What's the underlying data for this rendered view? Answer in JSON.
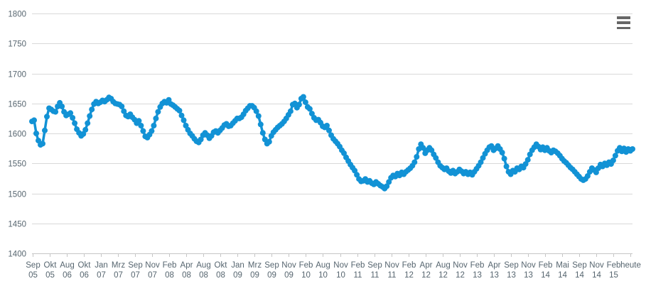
{
  "chart": {
    "series_color": "#1292d5",
    "grid_color": "#d8d8d8",
    "axis_line_color": "#c6c6c6",
    "label_color": "#56656f",
    "export_icon_color": "#666666",
    "background_color": "#ffffff"
  },
  "export_menu": {
    "icon": "hamburger-menu-icon"
  },
  "chart_data": {
    "type": "line",
    "title": "",
    "legend": "none",
    "grid": "horizontal",
    "marker_style": "filled-circle",
    "y_axis": {
      "min": 1400,
      "max": 1800,
      "tick_interval": 50,
      "tick_labels": [
        "1800",
        "1750",
        "1700",
        "1650",
        "1600",
        "1550",
        "1500",
        "1450",
        "1400"
      ]
    },
    "x_axis": {
      "tick_labels": [
        [
          "Sep",
          "05"
        ],
        [
          "Okt",
          "05"
        ],
        [
          "Aug",
          "06"
        ],
        [
          "Okt",
          "06"
        ],
        [
          "Jan",
          "07"
        ],
        [
          "Mrz",
          "07"
        ],
        [
          "Sep",
          "07"
        ],
        [
          "Nov",
          "07"
        ],
        [
          "Feb",
          "08"
        ],
        [
          "Apr",
          "08"
        ],
        [
          "Aug",
          "08"
        ],
        [
          "Okt",
          "08"
        ],
        [
          "Jan",
          "09"
        ],
        [
          "Mrz",
          "09"
        ],
        [
          "Sep",
          "09"
        ],
        [
          "Nov",
          "09"
        ],
        [
          "Feb",
          "10"
        ],
        [
          "Aug",
          "10"
        ],
        [
          "Nov",
          "10"
        ],
        [
          "Feb",
          "11"
        ],
        [
          "Sep",
          "11"
        ],
        [
          "Nov",
          "11"
        ],
        [
          "Feb",
          "12"
        ],
        [
          "Apr",
          "12"
        ],
        [
          "Aug",
          "12"
        ],
        [
          "Nov",
          "12"
        ],
        [
          "Feb",
          "13"
        ],
        [
          "Apr",
          "13"
        ],
        [
          "Sep",
          "13"
        ],
        [
          "Nov",
          "13"
        ],
        [
          "Feb",
          "14"
        ],
        [
          "Mai",
          "14"
        ],
        [
          "Sep",
          "14"
        ],
        [
          "Nov",
          "14"
        ],
        [
          "Feb",
          "15"
        ],
        [
          "heute",
          ""
        ]
      ]
    },
    "series": [
      {
        "values": [
          1620,
          1622,
          1600,
          1588,
          1581,
          1583,
          1605,
          1628,
          1642,
          1640,
          1637,
          1636,
          1645,
          1651,
          1645,
          1636,
          1630,
          1632,
          1634,
          1626,
          1617,
          1607,
          1601,
          1596,
          1599,
          1606,
          1617,
          1629,
          1640,
          1649,
          1653,
          1650,
          1652,
          1655,
          1653,
          1656,
          1660,
          1658,
          1653,
          1650,
          1649,
          1648,
          1645,
          1637,
          1630,
          1628,
          1632,
          1627,
          1623,
          1617,
          1621,
          1613,
          1604,
          1595,
          1593,
          1598,
          1604,
          1613,
          1625,
          1636,
          1644,
          1650,
          1653,
          1651,
          1656,
          1649,
          1647,
          1644,
          1641,
          1638,
          1630,
          1622,
          1613,
          1606,
          1600,
          1596,
          1591,
          1587,
          1585,
          1590,
          1597,
          1601,
          1597,
          1592,
          1596,
          1602,
          1604,
          1601,
          1605,
          1609,
          1614,
          1616,
          1612,
          1613,
          1617,
          1621,
          1625,
          1625,
          1627,
          1632,
          1638,
          1642,
          1646,
          1646,
          1643,
          1637,
          1629,
          1615,
          1601,
          1590,
          1583,
          1586,
          1596,
          1602,
          1606,
          1610,
          1613,
          1616,
          1620,
          1625,
          1631,
          1637,
          1648,
          1650,
          1643,
          1648,
          1658,
          1661,
          1652,
          1644,
          1641,
          1633,
          1626,
          1622,
          1623,
          1618,
          1612,
          1610,
          1613,
          1605,
          1597,
          1591,
          1587,
          1583,
          1578,
          1572,
          1567,
          1560,
          1554,
          1548,
          1543,
          1538,
          1531,
          1524,
          1520,
          1521,
          1524,
          1519,
          1521,
          1517,
          1515,
          1519,
          1516,
          1513,
          1511,
          1508,
          1512,
          1519,
          1526,
          1530,
          1528,
          1533,
          1530,
          1535,
          1532,
          1536,
          1539,
          1542,
          1546,
          1552,
          1561,
          1574,
          1582,
          1576,
          1567,
          1572,
          1576,
          1572,
          1565,
          1559,
          1552,
          1546,
          1543,
          1540,
          1542,
          1537,
          1534,
          1538,
          1533,
          1536,
          1540,
          1537,
          1533,
          1536,
          1532,
          1535,
          1531,
          1536,
          1541,
          1546,
          1552,
          1559,
          1566,
          1572,
          1577,
          1579,
          1572,
          1575,
          1579,
          1574,
          1568,
          1558,
          1545,
          1536,
          1532,
          1538,
          1536,
          1542,
          1540,
          1545,
          1543,
          1549,
          1556,
          1565,
          1572,
          1577,
          1582,
          1578,
          1573,
          1577,
          1572,
          1576,
          1571,
          1568,
          1572,
          1570,
          1567,
          1563,
          1558,
          1554,
          1551,
          1547,
          1543,
          1540,
          1536,
          1532,
          1528,
          1524,
          1522,
          1524,
          1529,
          1536,
          1542,
          1539,
          1535,
          1542,
          1548,
          1545,
          1550,
          1547,
          1552,
          1549,
          1555,
          1563,
          1571,
          1576,
          1570,
          1575,
          1569,
          1574,
          1571,
          1574
        ]
      }
    ]
  }
}
